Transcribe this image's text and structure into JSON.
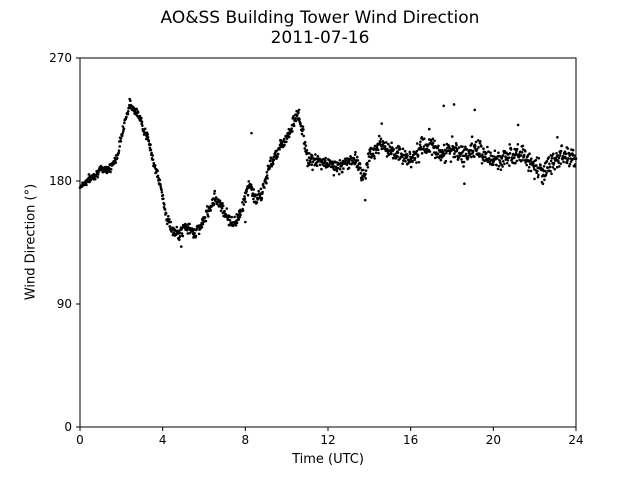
{
  "chart_data": {
    "type": "scatter",
    "title": "AO&SS Building Tower Wind Direction",
    "subtitle": "2011-07-16",
    "xlabel": "Time (UTC)",
    "ylabel": "Wind Direction (°)",
    "xlim": [
      0,
      24
    ],
    "ylim": [
      0,
      270
    ],
    "xticks": [
      0,
      4,
      8,
      12,
      16,
      20,
      24
    ],
    "yticks": [
      0,
      90,
      180,
      270
    ],
    "grid": false,
    "marker_color": "#000000",
    "trend": [
      [
        0.0,
        176
      ],
      [
        0.5,
        182
      ],
      [
        1.0,
        188
      ],
      [
        1.5,
        190
      ],
      [
        1.8,
        198
      ],
      [
        2.1,
        220
      ],
      [
        2.4,
        236
      ],
      [
        2.7,
        232
      ],
      [
        3.0,
        222
      ],
      [
        3.3,
        210
      ],
      [
        3.6,
        192
      ],
      [
        3.9,
        176
      ],
      [
        4.2,
        153
      ],
      [
        4.5,
        143
      ],
      [
        4.8,
        141
      ],
      [
        5.1,
        147
      ],
      [
        5.5,
        142
      ],
      [
        5.9,
        148
      ],
      [
        6.2,
        158
      ],
      [
        6.5,
        168
      ],
      [
        6.8,
        163
      ],
      [
        7.1,
        155
      ],
      [
        7.4,
        148
      ],
      [
        7.7,
        155
      ],
      [
        8.0,
        168
      ],
      [
        8.2,
        178
      ],
      [
        8.5,
        166
      ],
      [
        8.8,
        170
      ],
      [
        9.1,
        188
      ],
      [
        9.4,
        198
      ],
      [
        9.8,
        208
      ],
      [
        10.2,
        218
      ],
      [
        10.5,
        229
      ],
      [
        10.8,
        215
      ],
      [
        11.0,
        196
      ],
      [
        11.5,
        194
      ],
      [
        12.0,
        193
      ],
      [
        12.5,
        190
      ],
      [
        13.0,
        194
      ],
      [
        13.4,
        196
      ],
      [
        13.7,
        182
      ],
      [
        14.0,
        198
      ],
      [
        14.5,
        208
      ],
      [
        15.0,
        200
      ],
      [
        15.5,
        200
      ],
      [
        16.0,
        196
      ],
      [
        16.5,
        204
      ],
      [
        17.0,
        206
      ],
      [
        17.5,
        200
      ],
      [
        18.0,
        203
      ],
      [
        18.5,
        198
      ],
      [
        19.0,
        204
      ],
      [
        19.5,
        200
      ],
      [
        20.0,
        194
      ],
      [
        20.5,
        196
      ],
      [
        21.0,
        202
      ],
      [
        21.5,
        198
      ],
      [
        22.0,
        190
      ],
      [
        22.5,
        188
      ],
      [
        23.0,
        196
      ],
      [
        23.5,
        200
      ],
      [
        24.0,
        196
      ]
    ],
    "scatter_noise": [
      [
        0.0,
        3
      ],
      [
        8.2,
        5
      ],
      [
        13.5,
        6
      ],
      [
        24.0,
        9
      ]
    ],
    "outliers": [
      [
        4.9,
        132
      ],
      [
        8.3,
        215
      ],
      [
        10.6,
        232
      ],
      [
        17.6,
        235
      ],
      [
        18.1,
        236
      ],
      [
        19.1,
        232
      ],
      [
        21.2,
        221
      ],
      [
        22.4,
        178
      ],
      [
        18.6,
        178
      ],
      [
        16.9,
        218
      ],
      [
        13.8,
        166
      ],
      [
        14.6,
        222
      ],
      [
        8.0,
        150
      ],
      [
        23.1,
        212
      ]
    ]
  }
}
